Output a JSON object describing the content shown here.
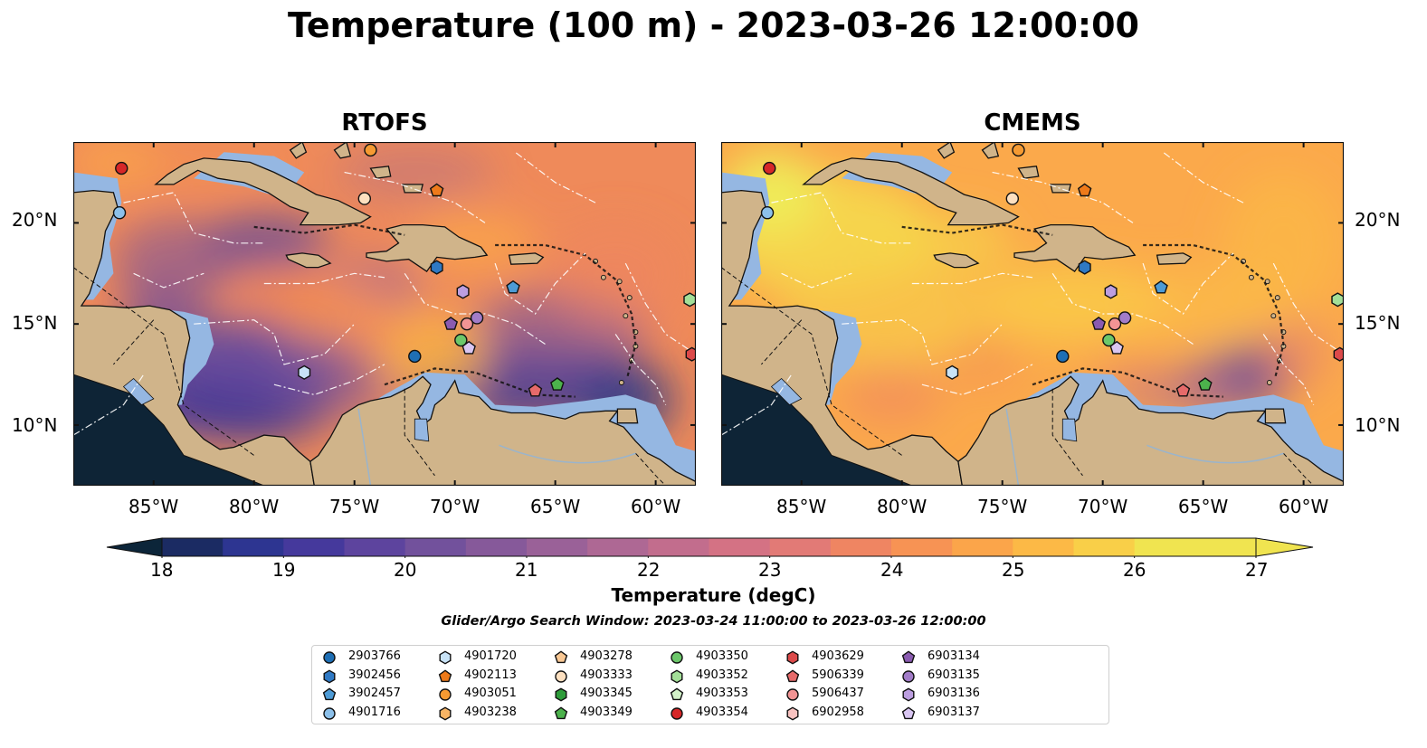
{
  "title": "Temperature (100 m) - 2023-03-26 12:00:00",
  "panels": [
    {
      "title": "RTOFS",
      "scheme": "rtofs"
    },
    {
      "title": "CMEMS",
      "scheme": "cmems"
    }
  ],
  "map_extent": {
    "lon": [
      -89,
      -58
    ],
    "lat": [
      7,
      24
    ]
  },
  "lon_ticks": [
    "85°W",
    "80°W",
    "75°W",
    "70°W",
    "65°W",
    "60°W"
  ],
  "lon_tick_values": [
    -85,
    -80,
    -75,
    -70,
    -65,
    -60
  ],
  "lat_ticks": [
    "20°N",
    "15°N",
    "10°N"
  ],
  "lat_tick_values": [
    20,
    15,
    10
  ],
  "colorbar": {
    "label": "Temperature (degC)",
    "ticks": [
      "18",
      "19",
      "20",
      "21",
      "22",
      "23",
      "24",
      "25",
      "26",
      "27"
    ],
    "min": 18,
    "max": 27,
    "step": 0.5,
    "colors": [
      "#0c2539",
      "#1b2b63",
      "#2d3591",
      "#45399c",
      "#5d449e",
      "#72519c",
      "#86599a",
      "#9a6198",
      "#ae6894",
      "#c26d8d",
      "#d47284",
      "#e27a76",
      "#ef8562",
      "#f79354",
      "#fba54a",
      "#fcb946",
      "#f9cf48",
      "#f0e450"
    ]
  },
  "search_window": "Glider/Argo Search Window: 2023-03-24 11:00:00 to 2023-03-26 12:00:00",
  "legend": [
    {
      "id": "2903766",
      "marker": "circle",
      "color": "#1f6fb5"
    },
    {
      "id": "3902456",
      "marker": "hexagon",
      "color": "#2f79c4"
    },
    {
      "id": "3902457",
      "marker": "pentagon",
      "color": "#4d9bd6"
    },
    {
      "id": "4901716",
      "marker": "circle",
      "color": "#8cc0ea"
    },
    {
      "id": "4901720",
      "marker": "hexagon",
      "color": "#c8e3f7"
    },
    {
      "id": "4902113",
      "marker": "pentagon",
      "color": "#ee7a1a"
    },
    {
      "id": "4903051",
      "marker": "circle",
      "color": "#f59a32"
    },
    {
      "id": "4903238",
      "marker": "hexagon",
      "color": "#f8b464"
    },
    {
      "id": "4903278",
      "marker": "pentagon",
      "color": "#f9c894"
    },
    {
      "id": "4903333",
      "marker": "circle",
      "color": "#fde0c0"
    },
    {
      "id": "4903345",
      "marker": "hexagon",
      "color": "#2e9c3a"
    },
    {
      "id": "4903349",
      "marker": "pentagon",
      "color": "#4cb24c"
    },
    {
      "id": "4903350",
      "marker": "circle",
      "color": "#6cc76a"
    },
    {
      "id": "4903352",
      "marker": "hexagon",
      "color": "#a3df98"
    },
    {
      "id": "4903353",
      "marker": "pentagon",
      "color": "#d2f1c8"
    },
    {
      "id": "4903354",
      "marker": "circle",
      "color": "#d62728"
    },
    {
      "id": "4903629",
      "marker": "hexagon",
      "color": "#dc4a4a"
    },
    {
      "id": "5906339",
      "marker": "pentagon",
      "color": "#e66a6a"
    },
    {
      "id": "5906437",
      "marker": "circle",
      "color": "#f29494"
    },
    {
      "id": "6902958",
      "marker": "hexagon",
      "color": "#f8c2c0"
    },
    {
      "id": "6903134",
      "marker": "pentagon",
      "color": "#8a5bb0"
    },
    {
      "id": "6903135",
      "marker": "circle",
      "color": "#a27cc8"
    },
    {
      "id": "6903136",
      "marker": "hexagon",
      "color": "#bc9ee0"
    },
    {
      "id": "6903137",
      "marker": "pentagon",
      "color": "#d9c6f2"
    }
  ],
  "observations": [
    {
      "id": "4903354",
      "lon": -86.6,
      "lat": 22.7
    },
    {
      "id": "4901716",
      "lon": -86.7,
      "lat": 20.5
    },
    {
      "id": "4903051",
      "lon": -74.2,
      "lat": 23.6
    },
    {
      "id": "4903333",
      "lon": -74.5,
      "lat": 21.2
    },
    {
      "id": "4902113",
      "lon": -70.9,
      "lat": 21.6
    },
    {
      "id": "3902456",
      "lon": -70.9,
      "lat": 17.8
    },
    {
      "id": "3902457",
      "lon": -67.1,
      "lat": 16.8
    },
    {
      "id": "6903136",
      "lon": -69.6,
      "lat": 16.6
    },
    {
      "id": "6903135",
      "lon": -68.9,
      "lat": 15.3
    },
    {
      "id": "5906437",
      "lon": -69.4,
      "lat": 15.0
    },
    {
      "id": "6903134",
      "lon": -70.2,
      "lat": 15.0
    },
    {
      "id": "4903350",
      "lon": -69.7,
      "lat": 14.2
    },
    {
      "id": "6903137",
      "lon": -69.3,
      "lat": 13.8
    },
    {
      "id": "2903766",
      "lon": -72.0,
      "lat": 13.4
    },
    {
      "id": "4901720",
      "lon": -77.5,
      "lat": 12.6
    },
    {
      "id": "5906339",
      "lon": -66.0,
      "lat": 11.7
    },
    {
      "id": "4903349",
      "lon": -64.9,
      "lat": 12.0
    },
    {
      "id": "4903352",
      "lon": -58.3,
      "lat": 16.2
    },
    {
      "id": "4903629",
      "lon": -58.2,
      "lat": 13.5
    }
  ]
}
